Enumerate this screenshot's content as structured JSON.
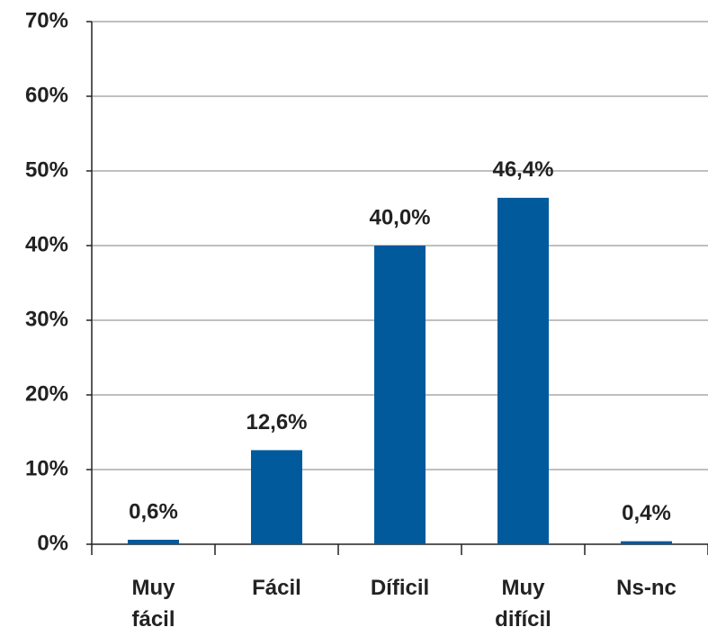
{
  "chart_data": {
    "type": "bar",
    "categories": [
      "Muy fácil",
      "Fácil",
      "Díficil",
      "Muy difícil",
      "Ns-nc"
    ],
    "values": [
      0.6,
      12.6,
      40.0,
      46.4,
      0.4
    ],
    "value_labels": [
      "0,6%",
      "12,6%",
      "40,0%",
      "46,4%",
      "0,4%"
    ],
    "color": "#005a9c",
    "ylim": [
      0,
      70
    ],
    "yticks": [
      {
        "value": 0,
        "label": "0%"
      },
      {
        "value": 10,
        "label": "10%"
      },
      {
        "value": 20,
        "label": "20%"
      },
      {
        "value": 30,
        "label": "30%"
      },
      {
        "value": 40,
        "label": "40%"
      },
      {
        "value": 50,
        "label": "50%"
      },
      {
        "value": 60,
        "label": "60%"
      },
      {
        "value": 70,
        "label": "70%"
      }
    ],
    "grid": true
  }
}
